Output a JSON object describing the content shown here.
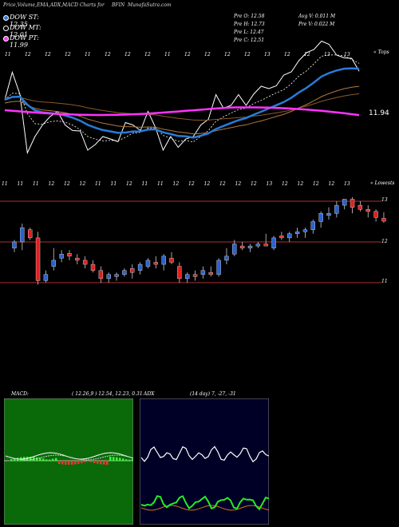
{
  "header": {
    "title": "Price,Volume,EMA,ADX,MACD Charts for",
    "ticker": "BFIN",
    "site": "MunafaSutra.com"
  },
  "legend": [
    {
      "label": "DOW ST: 12.35",
      "color": "#2a7bd6"
    },
    {
      "label": "DOW MT: 12.01",
      "color": "#000000"
    },
    {
      "label": "DOW PT: 11.99",
      "color": "#ff33ff"
    }
  ],
  "stats": {
    "prev_open": "Pre  O: 12.58",
    "prev_high": "Pre  H: 12.73",
    "prev_low": "Pre  L: 12.47",
    "prev_close": "Pre  C: 12.51",
    "avg_volume": "Avg V: 0.011 M",
    "prev_volume": "Pre  V: 0.022  M"
  },
  "ema_panel": {
    "top_label": "« Tops",
    "bottom_label": "« Lowests",
    "last_value_label": "11.94",
    "top_ticks": [
      "11",
      "12",
      "12",
      "12",
      "11",
      "12",
      "12",
      "12",
      "11",
      "12",
      "12",
      "12",
      "12",
      "13",
      "12",
      "12",
      "13",
      "13"
    ],
    "bottom_ticks": [
      "11",
      "11",
      "11",
      "12",
      "12",
      "12",
      "11",
      "11",
      "12",
      "11",
      "11",
      "12",
      "12",
      "12",
      "12",
      "12",
      "12",
      "13",
      "12",
      "12",
      "12",
      "12",
      "13"
    ]
  },
  "price_panel": {
    "axis_labels": [
      "13",
      "12",
      "11"
    ]
  },
  "macd_panel": {
    "label": "MACD:",
    "values": "( 12.26,9 ) 12.54, 12.23, 0.31"
  },
  "adx_panel": {
    "label": "ADX",
    "values": "(14  day) 7, -27, -31"
  },
  "chart_data": {
    "type": "candlestick",
    "y_axis_ticks": [
      11,
      12,
      13
    ],
    "ylim": [
      10.7,
      13.2
    ],
    "candles": [
      {
        "o": 11.85,
        "h": 12.05,
        "l": 11.75,
        "c": 12.0
      },
      {
        "o": 12.0,
        "h": 12.45,
        "l": 11.8,
        "c": 12.35
      },
      {
        "o": 12.3,
        "h": 12.35,
        "l": 12.05,
        "c": 12.1
      },
      {
        "o": 12.1,
        "h": 12.25,
        "l": 10.95,
        "c": 11.05
      },
      {
        "o": 11.05,
        "h": 11.3,
        "l": 11.0,
        "c": 11.2
      },
      {
        "o": 11.4,
        "h": 11.85,
        "l": 11.3,
        "c": 11.55
      },
      {
        "o": 11.6,
        "h": 11.8,
        "l": 11.5,
        "c": 11.7
      },
      {
        "o": 11.72,
        "h": 11.8,
        "l": 11.55,
        "c": 11.65
      },
      {
        "o": 11.6,
        "h": 11.7,
        "l": 11.45,
        "c": 11.55
      },
      {
        "o": 11.55,
        "h": 11.65,
        "l": 11.35,
        "c": 11.45
      },
      {
        "o": 11.45,
        "h": 11.55,
        "l": 11.25,
        "c": 11.3
      },
      {
        "o": 11.3,
        "h": 11.4,
        "l": 11.0,
        "c": 11.1
      },
      {
        "o": 11.1,
        "h": 11.25,
        "l": 11.0,
        "c": 11.2
      },
      {
        "o": 11.15,
        "h": 11.25,
        "l": 11.05,
        "c": 11.2
      },
      {
        "o": 11.2,
        "h": 11.35,
        "l": 11.15,
        "c": 11.3
      },
      {
        "o": 11.35,
        "h": 11.45,
        "l": 11.1,
        "c": 11.25
      },
      {
        "o": 11.3,
        "h": 11.5,
        "l": 11.2,
        "c": 11.45
      },
      {
        "o": 11.4,
        "h": 11.6,
        "l": 11.35,
        "c": 11.55
      },
      {
        "o": 11.5,
        "h": 11.65,
        "l": 11.35,
        "c": 11.45
      },
      {
        "o": 11.45,
        "h": 11.7,
        "l": 11.3,
        "c": 11.65
      },
      {
        "o": 11.6,
        "h": 11.75,
        "l": 11.45,
        "c": 11.5
      },
      {
        "o": 11.4,
        "h": 11.5,
        "l": 11.0,
        "c": 11.1
      },
      {
        "o": 11.1,
        "h": 11.25,
        "l": 11.0,
        "c": 11.2
      },
      {
        "o": 11.2,
        "h": 11.3,
        "l": 11.05,
        "c": 11.15
      },
      {
        "o": 11.2,
        "h": 11.4,
        "l": 11.1,
        "c": 11.3
      },
      {
        "o": 11.25,
        "h": 11.4,
        "l": 11.15,
        "c": 11.2
      },
      {
        "o": 11.2,
        "h": 11.6,
        "l": 11.15,
        "c": 11.55
      },
      {
        "o": 11.55,
        "h": 11.85,
        "l": 11.45,
        "c": 11.65
      },
      {
        "o": 11.7,
        "h": 12.05,
        "l": 11.65,
        "c": 11.95
      },
      {
        "o": 11.9,
        "h": 12.0,
        "l": 11.8,
        "c": 11.85
      },
      {
        "o": 11.85,
        "h": 11.95,
        "l": 11.75,
        "c": 11.9
      },
      {
        "o": 11.9,
        "h": 12.0,
        "l": 11.85,
        "c": 11.95
      },
      {
        "o": 11.95,
        "h": 12.2,
        "l": 11.9,
        "c": 11.9
      },
      {
        "o": 11.85,
        "h": 12.15,
        "l": 11.8,
        "c": 12.1
      },
      {
        "o": 12.15,
        "h": 12.25,
        "l": 12.05,
        "c": 12.1
      },
      {
        "o": 12.1,
        "h": 12.25,
        "l": 12.0,
        "c": 12.2
      },
      {
        "o": 12.2,
        "h": 12.35,
        "l": 12.1,
        "c": 12.25
      },
      {
        "o": 12.25,
        "h": 12.35,
        "l": 12.1,
        "c": 12.3
      },
      {
        "o": 12.3,
        "h": 12.55,
        "l": 12.2,
        "c": 12.5
      },
      {
        "o": 12.5,
        "h": 12.75,
        "l": 12.35,
        "c": 12.7
      },
      {
        "o": 12.65,
        "h": 12.85,
        "l": 12.55,
        "c": 12.7
      },
      {
        "o": 12.7,
        "h": 13.0,
        "l": 12.6,
        "c": 12.9
      },
      {
        "o": 12.9,
        "h": 13.05,
        "l": 12.8,
        "c": 13.05
      },
      {
        "o": 13.05,
        "h": 13.1,
        "l": 12.7,
        "c": 12.85
      },
      {
        "o": 12.9,
        "h": 13.0,
        "l": 12.75,
        "c": 12.8
      },
      {
        "o": 12.8,
        "h": 12.9,
        "l": 12.6,
        "c": 12.75
      },
      {
        "o": 12.75,
        "h": 12.8,
        "l": 12.5,
        "c": 12.6
      },
      {
        "o": 12.58,
        "h": 12.73,
        "l": 12.47,
        "c": 12.51
      }
    ]
  }
}
